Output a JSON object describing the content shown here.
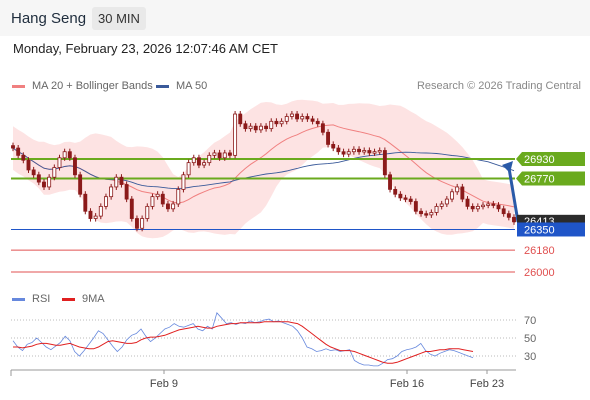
{
  "header": {
    "title": "Hang Seng",
    "interval": "30 MIN"
  },
  "datetime": "Monday, February 23, 2026 12:07:46 AM CET",
  "legend": {
    "ma20_label": "MA 20 + Bollinger Bands",
    "ma50_label": "MA 50",
    "rsi_label": "RSI",
    "rsi_ma_label": "9MA"
  },
  "credit": "Research © 2026 Trading Central",
  "colors": {
    "ma20": "#f08080",
    "ma50": "#3a5a9a",
    "bands_fill": "#fde3e3",
    "candle": "#8b1a1a",
    "resistance": "#6aaa1e",
    "support_blue": "#1f55c8",
    "support_red": "#e05050",
    "rsi": "#6688dd",
    "rsi_ma": "#e02020",
    "arrow": "#2a5aa8"
  },
  "chart_data": [
    {
      "type": "candlestick",
      "x_tick_labels": [
        "Feb 9",
        "Feb 16",
        "Feb 23"
      ],
      "price_labels": {
        "resistance_2": "26930",
        "resistance_1": "26770",
        "last_price": "26413",
        "support_1": "26350",
        "support_2": "26180",
        "support_3": "26000"
      },
      "levels": {
        "resistance_2": 26930,
        "resistance_1": 26770,
        "support_1": 26350,
        "support_2": 26180,
        "support_3": 26000
      },
      "last_price": 26413,
      "ylim": [
        25900,
        27500
      ],
      "close": [
        27020,
        26960,
        26920,
        26840,
        26800,
        26740,
        26700,
        26780,
        26860,
        26940,
        26990,
        26940,
        26800,
        26640,
        26500,
        26440,
        26460,
        26540,
        26620,
        26700,
        26780,
        26720,
        26600,
        26440,
        26360,
        26440,
        26540,
        26620,
        26640,
        26560,
        26520,
        26560,
        26680,
        26800,
        26900,
        26940,
        26880,
        26900,
        26960,
        26980,
        26940,
        26980,
        26960,
        27300,
        27220,
        27180,
        27200,
        27170,
        27200,
        27180,
        27240,
        27220,
        27240,
        27280,
        27300,
        27260,
        27280,
        27260,
        27240,
        27220,
        27150,
        27050,
        27020,
        26990,
        26970,
        26990,
        27010,
        26990,
        27000,
        26980,
        26990,
        27000,
        26800,
        26680,
        26640,
        26610,
        26600,
        26580,
        26500,
        26480,
        26470,
        26490,
        26540,
        26560,
        26600,
        26660,
        26700,
        26600,
        26540,
        26520,
        26540,
        26550,
        26560,
        26550,
        26520,
        26480,
        26450,
        26413
      ],
      "volatility_note": "values read from candle bodies"
    },
    {
      "type": "line",
      "y_tick_labels": [
        "70",
        "50",
        "30"
      ],
      "ylim": [
        15,
        85
      ],
      "series": [
        {
          "name": "RSI",
          "values": [
            47,
            40,
            36,
            43,
            45,
            50,
            45,
            40,
            37,
            41,
            45,
            52,
            47,
            35,
            30,
            36,
            43,
            50,
            58,
            55,
            48,
            41,
            35,
            40,
            48,
            53,
            55,
            60,
            52,
            46,
            50,
            55,
            60,
            62,
            66,
            63,
            62,
            64,
            66,
            60,
            58,
            63,
            60,
            78,
            72,
            66,
            67,
            65,
            67,
            66,
            69,
            67,
            68,
            70,
            71,
            68,
            69,
            67,
            65,
            63,
            58,
            50,
            40,
            38,
            35,
            36,
            38,
            36,
            37,
            35,
            36,
            37,
            25,
            22,
            20,
            20,
            19,
            19,
            22,
            26,
            27,
            30,
            35,
            37,
            38,
            40,
            44,
            36,
            32,
            30,
            33,
            35,
            37,
            36,
            34,
            32,
            30,
            28
          ]
        },
        {
          "name": "9MA",
          "values": [
            40,
            40,
            39,
            40,
            41,
            43,
            44,
            44,
            43,
            42,
            42,
            43,
            44,
            42,
            40,
            39,
            38,
            38,
            40,
            43,
            46,
            47,
            46,
            45,
            44,
            44,
            45,
            48,
            50,
            51,
            51,
            52,
            53,
            55,
            57,
            59,
            60,
            61,
            62,
            63,
            62,
            61,
            61,
            63,
            64,
            65,
            66,
            66,
            67,
            67,
            67,
            67,
            67,
            68,
            68,
            68,
            68,
            68,
            68,
            67,
            66,
            63,
            59,
            55,
            51,
            47,
            43,
            40,
            38,
            36,
            36,
            36,
            35,
            33,
            31,
            29,
            27,
            25,
            23,
            22,
            22,
            23,
            25,
            27,
            29,
            31,
            33,
            35,
            35,
            36,
            37,
            37,
            38,
            38,
            38,
            37,
            36,
            35
          ]
        }
      ]
    }
  ]
}
